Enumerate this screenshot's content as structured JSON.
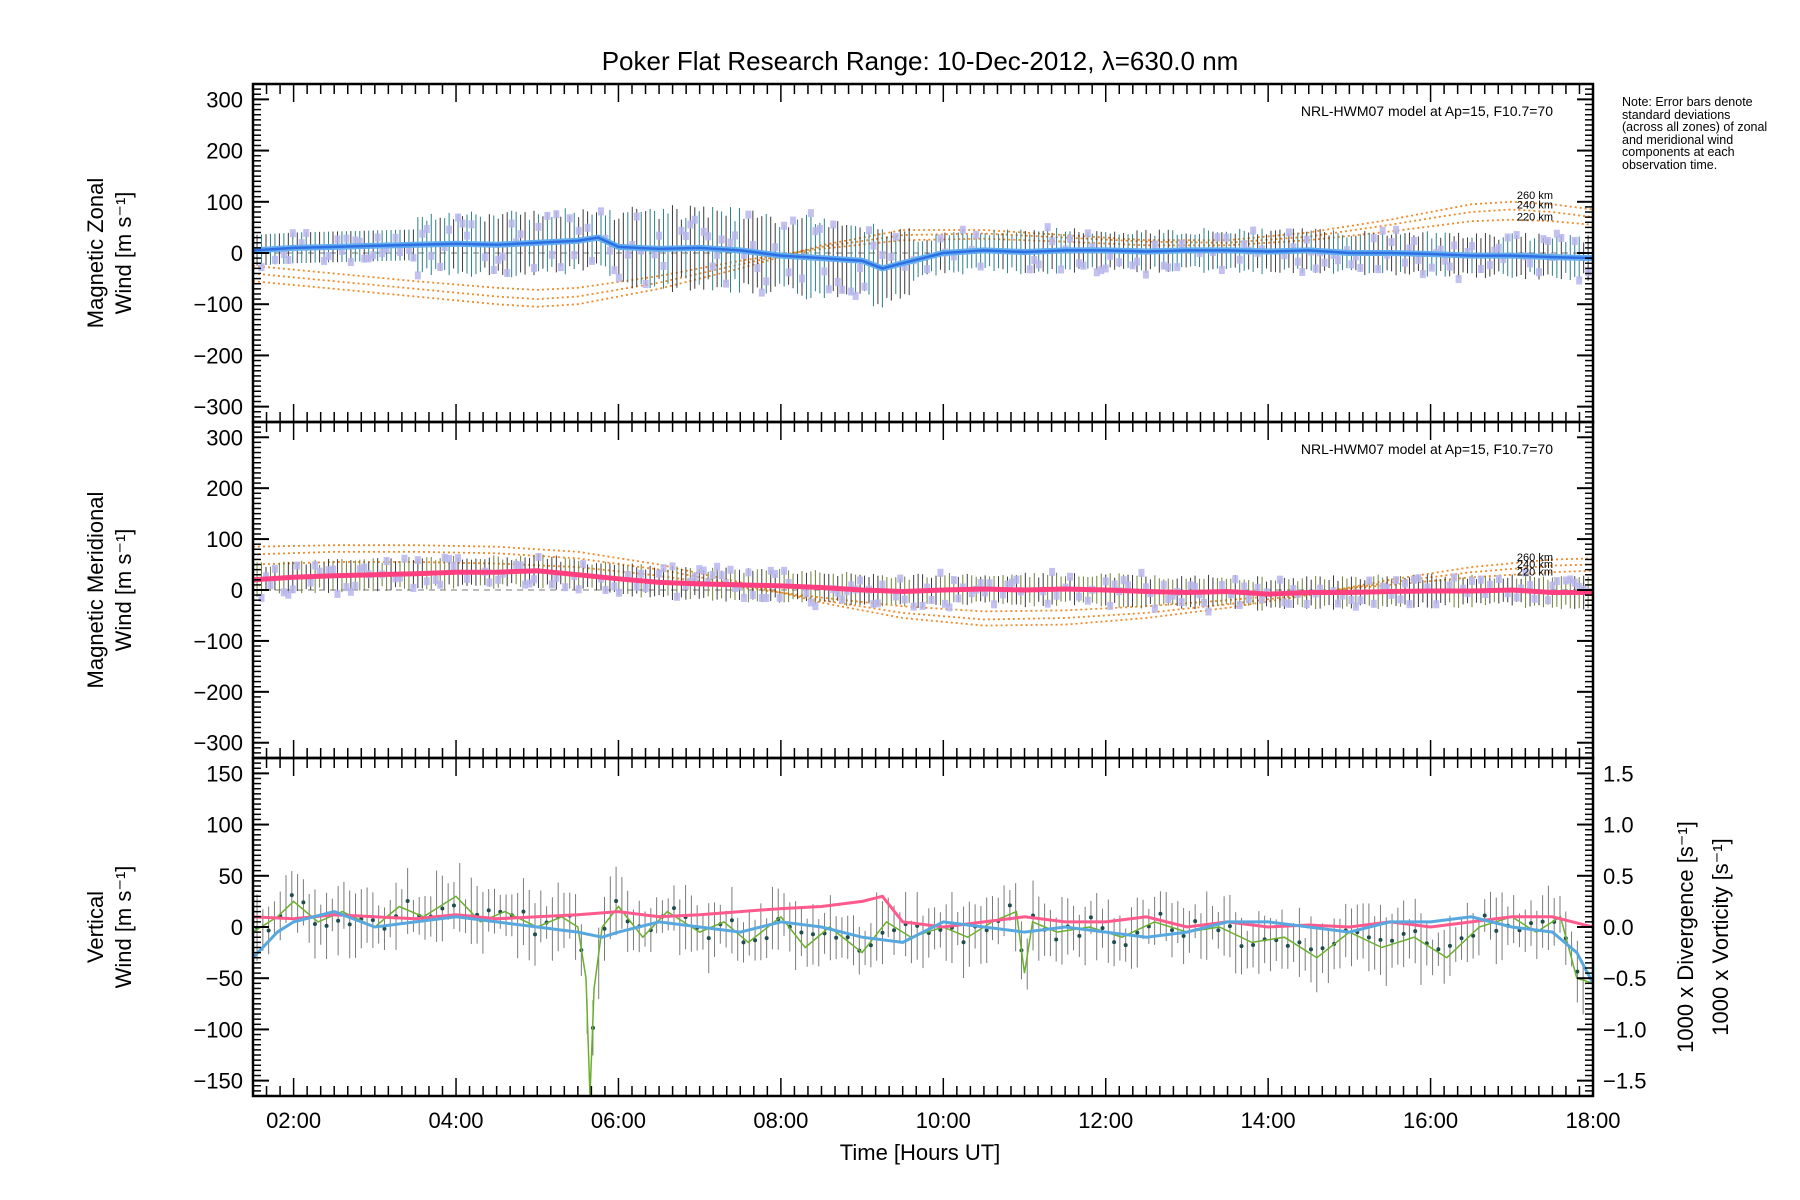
{
  "title": "Poker Flat Research Range: 10-Dec-2012, λ=630.0 nm",
  "xlabel": "Time [Hours UT]",
  "note": "Note: Error bars denote standard deviations (across all zones) of zonal and meridional wind components at each observation time.",
  "colors": {
    "zonal_mean": "#1f5fe0",
    "zonal_light": "#63aef0",
    "meridional_mean": "#ff3f7f",
    "vertical": "#6ab02e",
    "divergence": "#58a8e0",
    "vorticity": "#ff5a8e",
    "model": "#f08a28",
    "zones": "#b7b6ec",
    "errorbar": "#3a3a3a"
  },
  "chart_data": [
    {
      "type": "line",
      "panel": "zonal",
      "ylabel_line1": "Magnetic Zonal",
      "ylabel_line2": "Wind [m s⁻¹]",
      "xlim": [
        1.5,
        18.0
      ],
      "ylim": [
        -330,
        330
      ],
      "xticks": [
        "02:00",
        "04:00",
        "06:00",
        "08:00",
        "10:00",
        "12:00",
        "14:00",
        "16:00",
        "18:00"
      ],
      "yticks": [
        300,
        200,
        100,
        0,
        -100,
        -200,
        -300
      ],
      "model_label": "NRL-HWM07 model at Ap=15, F10.7=70",
      "model_altitudes": [
        "260 km",
        "240 km",
        "220 km"
      ],
      "mean_wind": {
        "x": [
          1.5,
          2.0,
          2.5,
          3.0,
          3.5,
          4.0,
          4.5,
          5.0,
          5.5,
          5.75,
          6.0,
          6.5,
          7.0,
          7.5,
          8.0,
          8.5,
          9.0,
          9.25,
          9.5,
          10.0,
          10.5,
          11.0,
          11.5,
          12.0,
          12.5,
          13.0,
          13.5,
          14.0,
          14.5,
          15.0,
          15.5,
          16.0,
          16.5,
          17.0,
          17.5,
          18.0
        ],
        "y": [
          5,
          10,
          12,
          14,
          16,
          18,
          16,
          20,
          24,
          30,
          12,
          8,
          10,
          5,
          -5,
          -10,
          -15,
          -30,
          -20,
          0,
          5,
          2,
          5,
          5,
          3,
          5,
          5,
          3,
          5,
          0,
          0,
          -2,
          -5,
          -5,
          -8,
          -10
        ]
      },
      "model_wind": {
        "x": [
          1.5,
          2.5,
          3.5,
          4.5,
          5.0,
          5.5,
          6.5,
          7.5,
          8.5,
          9.5,
          10.5,
          11.5,
          12.5,
          13.5,
          14.5,
          15.5,
          16.0,
          16.5,
          17.0,
          17.5,
          18.0
        ],
        "series": [
          {
            "name": "260 km",
            "y": [
              -55,
              -70,
              -85,
              -100,
              -105,
              -100,
              -70,
              -30,
              15,
              45,
              45,
              35,
              25,
              25,
              40,
              65,
              80,
              95,
              100,
              95,
              85
            ]
          },
          {
            "name": "240 km",
            "y": [
              -40,
              -55,
              -70,
              -85,
              -90,
              -85,
              -58,
              -22,
              12,
              35,
              38,
              30,
              22,
              20,
              32,
              55,
              68,
              80,
              85,
              80,
              70
            ]
          },
          {
            "name": "220 km",
            "y": [
              -25,
              -40,
              -55,
              -68,
              -72,
              -68,
              -45,
              -15,
              8,
              25,
              28,
              22,
              15,
              15,
              25,
              42,
              52,
              62,
              65,
              62,
              55
            ]
          }
        ]
      }
    },
    {
      "type": "line",
      "panel": "meridional",
      "ylabel_line1": "Magnetic Meridional",
      "ylabel_line2": "Wind [m s⁻¹]",
      "xlim": [
        1.5,
        18.0
      ],
      "ylim": [
        -330,
        330
      ],
      "yticks": [
        300,
        200,
        100,
        0,
        -100,
        -200,
        -300
      ],
      "model_label": "NRL-HWM07 model at Ap=15, F10.7=70",
      "model_altitudes": [
        "260 km",
        "240 km",
        "220 km"
      ],
      "mean_wind": {
        "x": [
          1.5,
          2.0,
          2.5,
          3.0,
          3.5,
          4.0,
          4.5,
          5.0,
          5.5,
          6.0,
          6.5,
          7.0,
          7.5,
          8.0,
          8.5,
          9.0,
          9.5,
          10.0,
          10.5,
          11.0,
          11.5,
          12.0,
          12.5,
          13.0,
          13.5,
          14.0,
          14.5,
          15.0,
          15.5,
          16.0,
          16.5,
          17.0,
          17.5,
          18.0
        ],
        "y": [
          20,
          25,
          28,
          30,
          32,
          35,
          35,
          38,
          30,
          22,
          15,
          12,
          10,
          8,
          5,
          0,
          -3,
          0,
          2,
          0,
          2,
          0,
          -3,
          -5,
          -3,
          -8,
          -5,
          -5,
          -3,
          -2,
          -2,
          0,
          -5,
          -5
        ]
      },
      "model_wind": {
        "x": [
          1.5,
          2.5,
          3.5,
          4.5,
          5.5,
          6.5,
          7.5,
          8.5,
          9.5,
          10.5,
          11.5,
          12.5,
          13.5,
          14.5,
          15.5,
          16.5,
          17.5,
          18.0
        ],
        "series": [
          {
            "name": "260 km",
            "y": [
              85,
              88,
              88,
              85,
              75,
              50,
              15,
              -25,
              -55,
              -70,
              -68,
              -55,
              -35,
              -10,
              20,
              45,
              60,
              62
            ]
          },
          {
            "name": "240 km",
            "y": [
              70,
              75,
              75,
              72,
              62,
              40,
              10,
              -20,
              -45,
              -58,
              -55,
              -45,
              -28,
              -8,
              15,
              35,
              48,
              50
            ]
          },
          {
            "name": "220 km",
            "y": [
              50,
              55,
              55,
              52,
              45,
              28,
              5,
              -15,
              -32,
              -42,
              -40,
              -32,
              -20,
              -5,
              10,
              25,
              35,
              38
            ]
          }
        ]
      }
    },
    {
      "type": "line",
      "panel": "vertical",
      "ylabel_line1": "Vertical",
      "ylabel_line2": "Wind [m s⁻¹]",
      "y2label_div": "1000 x Divergence [s⁻¹]",
      "y2label_vor": "1000 x Vorticity [s⁻¹]",
      "xlim": [
        1.5,
        18.0
      ],
      "ylim": [
        -165,
        165
      ],
      "y2lim": [
        -1.65,
        1.65
      ],
      "yticks": [
        150,
        100,
        50,
        0,
        -50,
        -100,
        -150
      ],
      "y2ticks": [
        "1.5",
        "1.0",
        "0.5",
        "0.0",
        "-0.5",
        "-1.0",
        "-1.5"
      ],
      "vertical_wind": {
        "x": [
          1.5,
          1.8,
          2.0,
          2.3,
          2.6,
          3.0,
          3.3,
          3.6,
          4.0,
          4.3,
          4.6,
          5.0,
          5.3,
          5.5,
          5.6,
          5.65,
          5.7,
          5.8,
          6.0,
          6.3,
          6.6,
          7.0,
          7.3,
          7.6,
          8.0,
          8.3,
          8.6,
          9.0,
          9.3,
          9.6,
          10.0,
          10.3,
          10.6,
          10.9,
          11.0,
          11.1,
          11.4,
          11.8,
          12.2,
          12.6,
          13.0,
          13.4,
          13.8,
          14.2,
          14.6,
          15.0,
          15.4,
          15.8,
          16.2,
          16.6,
          17.0,
          17.3,
          17.6,
          17.8,
          18.0
        ],
        "y": [
          -5,
          10,
          25,
          5,
          15,
          0,
          20,
          10,
          30,
          5,
          15,
          0,
          10,
          0,
          -50,
          -165,
          -60,
          0,
          20,
          -10,
          15,
          -5,
          5,
          -15,
          10,
          -20,
          0,
          -25,
          5,
          -10,
          0,
          -10,
          5,
          15,
          -45,
          5,
          -5,
          0,
          -10,
          5,
          -5,
          0,
          -15,
          -10,
          -30,
          -5,
          -20,
          -10,
          -30,
          0,
          10,
          -5,
          10,
          -50,
          -55
        ]
      },
      "divergence": {
        "x": [
          1.5,
          1.8,
          2.0,
          2.5,
          3.0,
          3.5,
          4.0,
          4.5,
          5.0,
          5.5,
          5.8,
          6.0,
          6.5,
          7.0,
          7.5,
          8.0,
          8.5,
          9.0,
          9.5,
          10.0,
          10.5,
          11.0,
          11.5,
          12.0,
          12.5,
          13.0,
          13.5,
          14.0,
          14.5,
          15.0,
          15.5,
          16.0,
          16.5,
          17.0,
          17.5,
          17.8,
          18.0
        ],
        "y": [
          -0.3,
          -0.05,
          0.05,
          0.15,
          0.0,
          0.05,
          0.1,
          0.05,
          0.0,
          -0.05,
          -0.1,
          -0.05,
          0.05,
          0.0,
          -0.05,
          0.05,
          0.0,
          -0.1,
          -0.15,
          0.05,
          0.0,
          -0.05,
          0.0,
          -0.05,
          -0.1,
          -0.05,
          0.05,
          0.05,
          0.0,
          -0.05,
          0.05,
          0.05,
          0.1,
          0.0,
          -0.05,
          -0.25,
          -0.55
        ]
      },
      "vorticity": {
        "x": [
          1.5,
          2.0,
          2.5,
          3.0,
          3.5,
          4.0,
          4.5,
          5.0,
          5.5,
          6.0,
          6.5,
          7.0,
          7.5,
          8.0,
          8.5,
          9.0,
          9.25,
          9.5,
          10.0,
          10.5,
          11.0,
          11.5,
          12.0,
          12.5,
          13.0,
          13.5,
          14.0,
          14.5,
          15.0,
          15.5,
          16.0,
          16.5,
          17.0,
          17.5,
          18.0
        ],
        "y": [
          0.1,
          0.08,
          0.12,
          0.1,
          0.08,
          0.12,
          0.08,
          0.1,
          0.12,
          0.15,
          0.1,
          0.12,
          0.15,
          0.18,
          0.2,
          0.25,
          0.3,
          0.05,
          0.0,
          0.05,
          0.1,
          0.05,
          0.05,
          0.1,
          0.0,
          0.05,
          0.0,
          0.02,
          0.0,
          0.05,
          0.0,
          0.05,
          0.1,
          0.1,
          0.0
        ]
      }
    }
  ]
}
